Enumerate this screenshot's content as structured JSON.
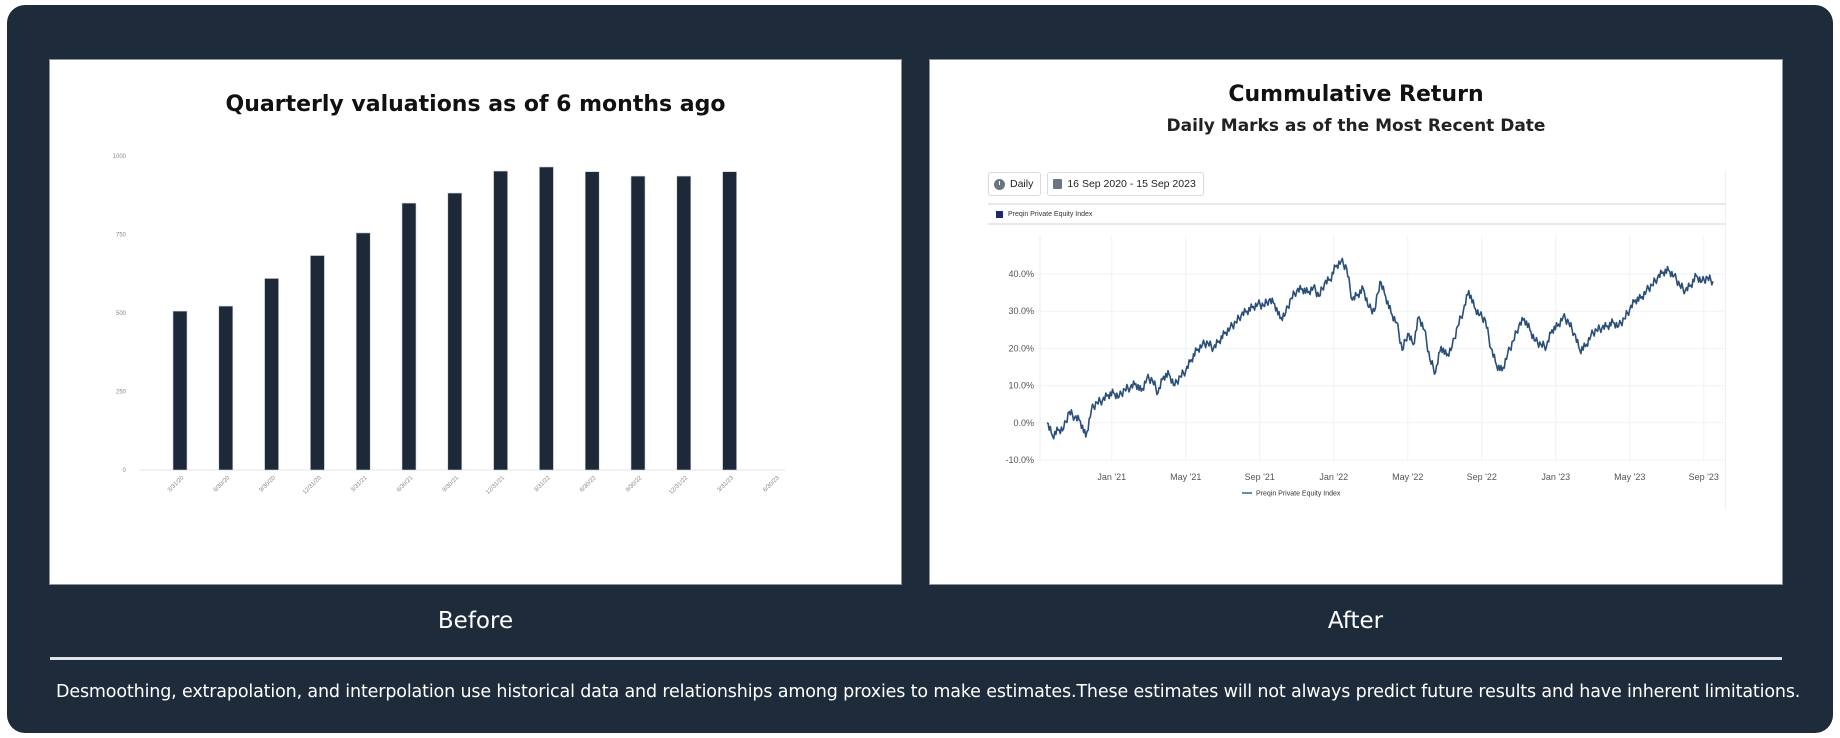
{
  "captions": {
    "before": "Before",
    "after": "After"
  },
  "footer": {
    "disclaimer": "Desmoothing, extrapolation, and interpolation use historical data and relationships among proxies to make estimates.These estimates will not always predict future results and have inherent limitations."
  },
  "colors": {
    "frame": "#1e2b3b",
    "bar": "#1d2939",
    "line": "#2b4f77",
    "legend_swatch": "#1c2a6b"
  },
  "left_chart": {
    "title": "Quarterly valuations as of 6 months ago"
  },
  "right_chart": {
    "title": "Cummulative Return",
    "subtitle": "Daily Marks as of the Most Recent Date",
    "toolbar": {
      "frequency_label": "Daily",
      "frequency_icon": "clock-icon",
      "range_label": "16 Sep 2020 - 15 Sep 2023",
      "range_icon": "calendar-icon"
    },
    "legend_top": "Preqin Private Equity Index",
    "legend_bottom": "Preqin Private Equity Index"
  },
  "chart_data": [
    {
      "type": "bar",
      "title": "Quarterly valuations as of 6 months ago",
      "xlabel": "",
      "ylabel": "",
      "categories": [
        "3/31/20",
        "6/30/20",
        "9/30/20",
        "12/31/20",
        "3/31/21",
        "6/30/21",
        "9/30/21",
        "12/31/21",
        "3/31/22",
        "6/30/22",
        "9/30/22",
        "12/31/22",
        "3/31/23",
        "6/30/23"
      ],
      "values": [
        506,
        522,
        610,
        683,
        755,
        850,
        882,
        952,
        965,
        950,
        936,
        936,
        950,
        null
      ],
      "yticks": [
        0,
        250,
        500,
        750,
        1000
      ],
      "ylim": [
        0,
        1000
      ],
      "grid": false,
      "legend": null
    },
    {
      "type": "line",
      "title": "Cummulative Return",
      "subtitle": "Daily Marks as of the Most Recent Date",
      "xlabel": "",
      "ylabel": "",
      "x_ticks": [
        "Jan '21",
        "May '21",
        "Sep '21",
        "Jan '22",
        "May '22",
        "Sep '22",
        "Jan '23",
        "May '23",
        "Sep '23"
      ],
      "yticks": [
        "-10.0%",
        "0.0%",
        "10.0%",
        "20.0%",
        "30.0%",
        "40.0%"
      ],
      "ylim": [
        -10,
        45
      ],
      "x_range": [
        "2020-09-16",
        "2023-09-15"
      ],
      "grid": true,
      "legend_position": "bottom",
      "series": [
        {
          "name": "Preqin Private Equity Index",
          "x_months_from_start": [
            0,
            0.3,
            0.6,
            0.9,
            1.2,
            1.5,
            1.8,
            2.1,
            2.4,
            2.7,
            3.0,
            3.3,
            3.6,
            3.9,
            4.2,
            4.5,
            4.8,
            5.1,
            5.4,
            5.7,
            6.0,
            6.3,
            6.6,
            6.9,
            7.2,
            7.5,
            7.8,
            8.1,
            8.4,
            8.7,
            9.0,
            9.3,
            9.6,
            9.9,
            10.2,
            10.5,
            10.8,
            11.1,
            11.4,
            11.7,
            12.0,
            12.3,
            12.6,
            12.9,
            13.2,
            13.5,
            13.8,
            14.1,
            14.4,
            14.7,
            15.0,
            15.3,
            15.6,
            15.9,
            16.2,
            16.5,
            16.8,
            17.1,
            17.4,
            17.7,
            18.0,
            18.3,
            18.6,
            18.9,
            19.2,
            19.5,
            19.8,
            20.1,
            20.4,
            20.7,
            21.0,
            21.3,
            21.6,
            21.9,
            22.2,
            22.5,
            22.8,
            23.1,
            23.4,
            23.7,
            24.0,
            24.3,
            24.6,
            24.9,
            25.2,
            25.5,
            25.8,
            26.1,
            26.4,
            26.7,
            27.0,
            27.3,
            27.6,
            27.9,
            28.2,
            28.5,
            28.8,
            29.1,
            29.4,
            29.7,
            30.0,
            30.3,
            30.6,
            30.9,
            31.2,
            31.5,
            31.8,
            32.1,
            32.4,
            32.7,
            33.0,
            33.3,
            33.6,
            33.9,
            34.2,
            34.5,
            34.8,
            35.1,
            35.4,
            35.7,
            36.0
          ],
          "values": [
            0.0,
            -3.5,
            -2.0,
            -1.5,
            3.0,
            1.5,
            0.5,
            -3.8,
            3.5,
            5.5,
            6.0,
            7.5,
            8.0,
            7.0,
            9.0,
            9.5,
            10.5,
            8.5,
            12.0,
            11.5,
            8.0,
            12.5,
            13.0,
            10.0,
            12.5,
            14.0,
            17.0,
            19.5,
            21.0,
            21.5,
            20.0,
            22.0,
            24.0,
            25.5,
            27.0,
            29.0,
            30.0,
            31.0,
            32.0,
            31.5,
            33.0,
            32.0,
            28.0,
            29.5,
            33.5,
            35.5,
            36.0,
            35.0,
            36.5,
            34.0,
            37.5,
            38.5,
            42.0,
            43.5,
            41.5,
            33.0,
            34.5,
            36.0,
            31.0,
            30.0,
            38.0,
            34.0,
            29.5,
            27.0,
            19.5,
            24.0,
            21.0,
            28.5,
            25.0,
            17.0,
            13.5,
            20.5,
            18.0,
            20.5,
            26.0,
            30.0,
            35.5,
            31.0,
            29.0,
            27.5,
            20.0,
            15.5,
            14.0,
            18.5,
            22.0,
            26.0,
            28.0,
            25.0,
            22.0,
            21.0,
            20.5,
            25.0,
            26.0,
            28.5,
            27.0,
            24.0,
            19.5,
            20.5,
            23.5,
            25.0,
            25.5,
            26.0,
            27.0,
            26.0,
            28.0,
            30.5,
            33.0,
            33.5,
            35.5,
            37.0,
            39.0,
            40.5,
            41.0,
            39.5,
            37.0,
            35.5,
            37.0,
            39.5,
            38.0,
            39.0,
            38.0
          ]
        }
      ]
    }
  ]
}
